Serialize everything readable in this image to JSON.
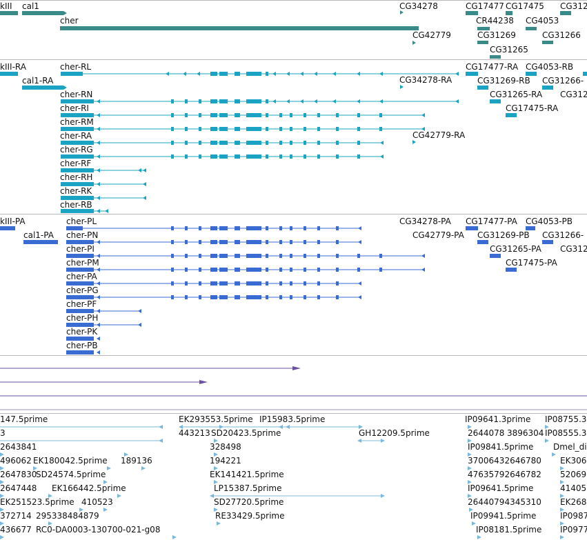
{
  "colors": {
    "genes": "#3a8b87",
    "transcripts": "#1aa3c2",
    "proteins": "#3a6bd2",
    "purple": "#6a4fa3",
    "ests": "#7ab8d9",
    "divider": "#b8b8b8"
  },
  "tracks": {
    "genes": {
      "labels": [
        "kIII",
        "cal1",
        "cher",
        "CG34278",
        "CG17477",
        "CG17475",
        "CG312",
        "CR44238",
        "CG4053",
        "CG42779",
        "CG31269",
        "CG31266",
        "CG31265"
      ]
    },
    "transcripts": {
      "labels": [
        "kIII-RA",
        "cal1-RA",
        "cher-RL",
        "cher-RN",
        "cher-RI",
        "cher-RM",
        "cher-RA",
        "cher-RG",
        "cher-RF",
        "cher-RH",
        "cher-RK",
        "cher-RB",
        "CG34278-RA",
        "CG42779-RA",
        "CG17477-RA",
        "CG4053-RB",
        "CG31269-RB",
        "CG31266-",
        "CG31265-RA",
        "CG312",
        "CG17475-RA"
      ]
    },
    "proteins": {
      "labels": [
        "kIII-PA",
        "cal1-PA",
        "cher-PL",
        "cher-PN",
        "cher-PI",
        "cher-PM",
        "cher-PA",
        "cher-PG",
        "cher-PF",
        "cher-PH",
        "cher-PK",
        "cher-PB",
        "CG34278-PA",
        "CG42779-PA",
        "CG17477-PA",
        "CG4053-PB",
        "CG31269-PB",
        "CG31266-",
        "CG31265-PA",
        "CG312",
        "CG17475-PA"
      ]
    },
    "ests": {
      "labels": [
        "147.5prime",
        "3",
        "2643841",
        "496062",
        "EK180042.5prime",
        "189136",
        "2647830",
        "SD24574.5prime",
        "2647448",
        "EK166442.5prime",
        "EK251523.5prime",
        "410523",
        "372714",
        "295338484879",
        "436677",
        "RC0-DA0003-130700-021-g08",
        "EK293553.5prime",
        "IP15983.5prime",
        "443213",
        "SD20423.5prime",
        "GH12209.5prime",
        "328498",
        "194221",
        "EK141421.5prime",
        "LP15387.5prime",
        "SD27720.5prime",
        "RE33429.5prime",
        "IP09641.3prime",
        "IP08755.3",
        "2644078",
        "3896304",
        "IP08555.3",
        "IP09841.5prime",
        "Dmel_dig",
        "37006432646780",
        "EK306",
        "47635792646782",
        "52069",
        "IP09641.5prime",
        "41405",
        "26440794345310",
        "EK268",
        "IP09941.5prime",
        "IP0987",
        "IP08181.5prime",
        "IP0977"
      ]
    }
  }
}
